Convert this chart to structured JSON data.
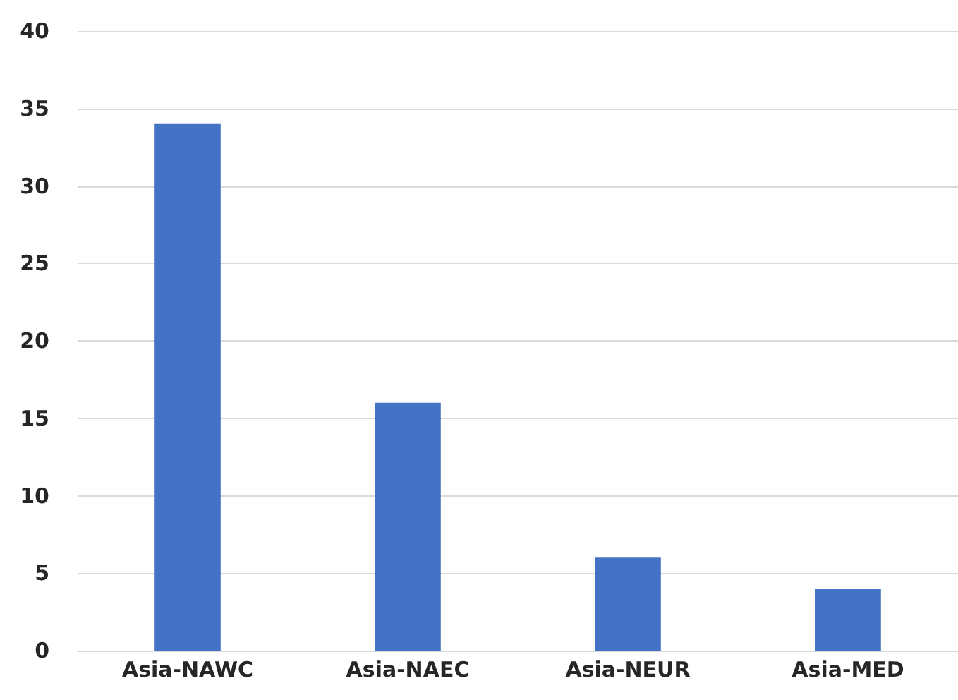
{
  "chart_data": {
    "type": "bar",
    "categories": [
      "Asia-NAWC",
      "Asia-NAEC",
      "Asia-NEUR",
      "Asia-MED"
    ],
    "values": [
      34,
      16,
      6,
      4
    ],
    "color": "#4472c4",
    "ylim": [
      0,
      40
    ],
    "yticks": [
      0,
      5,
      10,
      15,
      20,
      25,
      30,
      35,
      40
    ],
    "grid": "y"
  }
}
